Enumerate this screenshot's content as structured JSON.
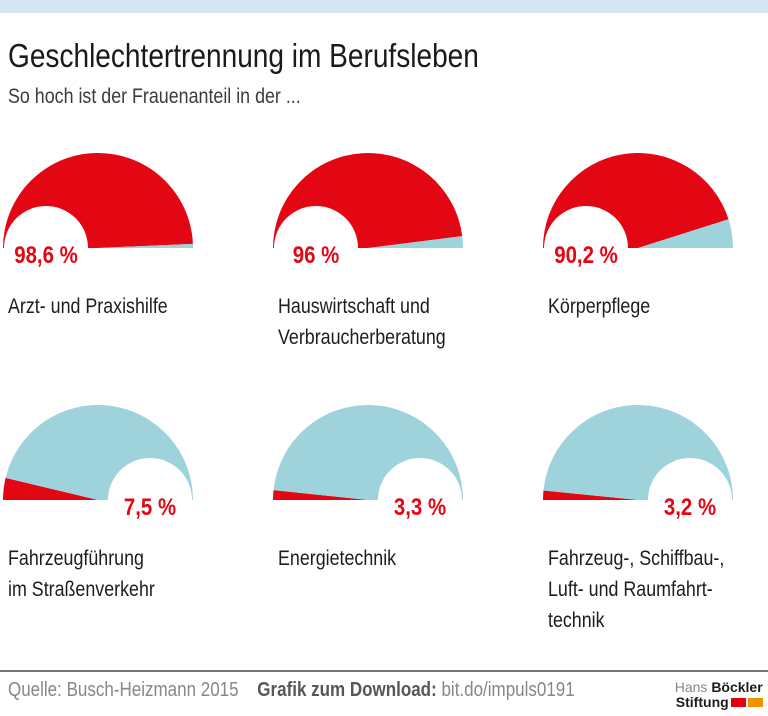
{
  "header": {
    "title": "Geschlechtertrennung im Berufsleben",
    "subtitle": "So hoch ist der Frauenanteil in der ..."
  },
  "chart_data": {
    "type": "pie",
    "variant": "semicircle-gauge",
    "title": "Geschlechtertrennung im Berufsleben",
    "subtitle": "So hoch ist der Frauenanteil in der ...",
    "unit": "%",
    "angle_span_deg": 180,
    "gauges": [
      {
        "label": "Arzt- und Praxishilfe",
        "value": 98.6,
        "value_label": "98,6 %",
        "label_side": "left"
      },
      {
        "label": "Hauswirtschaft und\nVerbraucherberatung",
        "value": 96,
        "value_label": "96 %",
        "label_side": "left"
      },
      {
        "label": "Körperpflege",
        "value": 90.2,
        "value_label": "90,2 %",
        "label_side": "left"
      },
      {
        "label": "Fahrzeugführung\nim Straßenverkehr",
        "value": 7.5,
        "value_label": "7,5 %",
        "label_side": "right"
      },
      {
        "label": "Energietechnik",
        "value": 3.3,
        "value_label": "3,3 %",
        "label_side": "right"
      },
      {
        "label": "Fahrzeug-, Schiffbau-,\nLuft- und Raumfahrt-\ntechnik",
        "value": 3.2,
        "value_label": "3,2 %",
        "label_side": "right"
      }
    ],
    "colors": {
      "women": "#e30613",
      "men": "#9fd3dc",
      "value_label": "#e30613"
    }
  },
  "colors": {
    "topbar": "#d3e6f0",
    "divider": "#757574",
    "logo_red": "#e3000f",
    "logo_orange": "#f39200"
  },
  "footer": {
    "source": "Quelle: Busch-Heizmann 2015",
    "download_label": "Grafik zum Download:",
    "download_url": "bit.do/impuls0191",
    "logo": {
      "line1_regular": "Hans",
      "line1_bold": "Böckler",
      "line2_bold": "Stiftung"
    }
  }
}
